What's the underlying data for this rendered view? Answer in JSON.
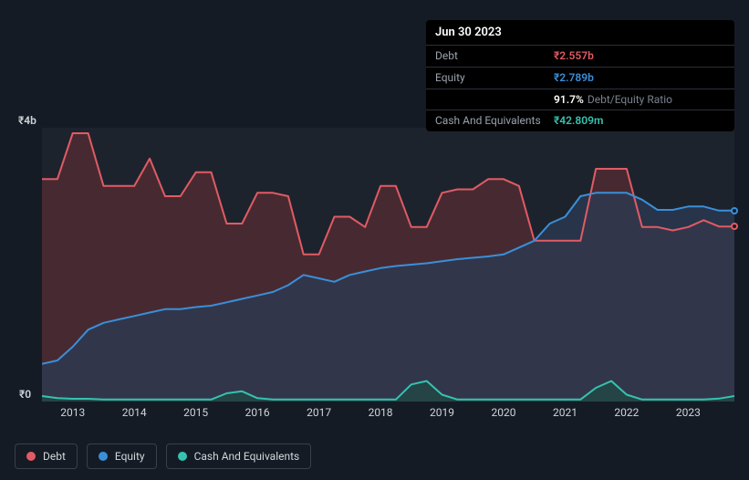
{
  "tooltip": {
    "date": "Jun 30 2023",
    "rows": [
      {
        "label": "Debt",
        "value": "₹2.557b",
        "cls": "debt"
      },
      {
        "label": "Equity",
        "value": "₹2.789b",
        "cls": "equity"
      },
      {
        "label": "",
        "value": "91.7%",
        "suffix": "Debt/Equity Ratio",
        "cls": "ratio"
      },
      {
        "label": "Cash And Equivalents",
        "value": "₹42.809m",
        "cls": "cash"
      }
    ]
  },
  "chart": {
    "background": "#1d232d",
    "page_bg": "#151b24",
    "y_axis": {
      "min": 0,
      "max": 4,
      "labels": [
        {
          "v": 4,
          "text": "₹4b"
        },
        {
          "v": 0,
          "text": "₹0"
        }
      ]
    },
    "x_axis": {
      "min": 2012.5,
      "max": 2023.75,
      "ticks": [
        2013,
        2014,
        2015,
        2016,
        2017,
        2018,
        2019,
        2020,
        2021,
        2022,
        2023
      ]
    },
    "series": {
      "debt": {
        "color": "#e15b64",
        "fill": "#5b2d34",
        "fill_opacity": 0.68,
        "line_width": 2,
        "data": [
          [
            2012.5,
            3.25
          ],
          [
            2012.75,
            3.25
          ],
          [
            2013.0,
            3.92
          ],
          [
            2013.25,
            3.92
          ],
          [
            2013.5,
            3.15
          ],
          [
            2013.75,
            3.15
          ],
          [
            2014.0,
            3.15
          ],
          [
            2014.25,
            3.55
          ],
          [
            2014.5,
            3.0
          ],
          [
            2014.75,
            3.0
          ],
          [
            2015.0,
            3.35
          ],
          [
            2015.25,
            3.35
          ],
          [
            2015.5,
            2.6
          ],
          [
            2015.75,
            2.6
          ],
          [
            2016.0,
            3.05
          ],
          [
            2016.25,
            3.05
          ],
          [
            2016.5,
            3.0
          ],
          [
            2016.75,
            2.15
          ],
          [
            2017.0,
            2.15
          ],
          [
            2017.25,
            2.7
          ],
          [
            2017.5,
            2.7
          ],
          [
            2017.75,
            2.55
          ],
          [
            2018.0,
            3.15
          ],
          [
            2018.25,
            3.15
          ],
          [
            2018.5,
            2.55
          ],
          [
            2018.75,
            2.55
          ],
          [
            2019.0,
            3.05
          ],
          [
            2019.25,
            3.1
          ],
          [
            2019.5,
            3.1
          ],
          [
            2019.75,
            3.25
          ],
          [
            2020.0,
            3.25
          ],
          [
            2020.25,
            3.15
          ],
          [
            2020.5,
            2.35
          ],
          [
            2020.75,
            2.35
          ],
          [
            2021.0,
            2.35
          ],
          [
            2021.25,
            2.35
          ],
          [
            2021.5,
            3.4
          ],
          [
            2021.75,
            3.4
          ],
          [
            2022.0,
            3.4
          ],
          [
            2022.25,
            2.55
          ],
          [
            2022.5,
            2.55
          ],
          [
            2022.75,
            2.5
          ],
          [
            2023.0,
            2.55
          ],
          [
            2023.25,
            2.65
          ],
          [
            2023.5,
            2.557
          ],
          [
            2023.75,
            2.557
          ]
        ]
      },
      "equity": {
        "color": "#3a8fd9",
        "fill": "#2b3b56",
        "fill_opacity": 0.72,
        "line_width": 2,
        "data": [
          [
            2012.5,
            0.55
          ],
          [
            2012.75,
            0.6
          ],
          [
            2013.0,
            0.8
          ],
          [
            2013.25,
            1.05
          ],
          [
            2013.5,
            1.15
          ],
          [
            2013.75,
            1.2
          ],
          [
            2014.0,
            1.25
          ],
          [
            2014.25,
            1.3
          ],
          [
            2014.5,
            1.35
          ],
          [
            2014.75,
            1.35
          ],
          [
            2015.0,
            1.38
          ],
          [
            2015.25,
            1.4
          ],
          [
            2015.5,
            1.45
          ],
          [
            2015.75,
            1.5
          ],
          [
            2016.0,
            1.55
          ],
          [
            2016.25,
            1.6
          ],
          [
            2016.5,
            1.7
          ],
          [
            2016.75,
            1.85
          ],
          [
            2017.0,
            1.8
          ],
          [
            2017.25,
            1.75
          ],
          [
            2017.5,
            1.85
          ],
          [
            2017.75,
            1.9
          ],
          [
            2018.0,
            1.95
          ],
          [
            2018.25,
            1.98
          ],
          [
            2018.5,
            2.0
          ],
          [
            2018.75,
            2.02
          ],
          [
            2019.0,
            2.05
          ],
          [
            2019.25,
            2.08
          ],
          [
            2019.5,
            2.1
          ],
          [
            2019.75,
            2.12
          ],
          [
            2020.0,
            2.15
          ],
          [
            2020.25,
            2.25
          ],
          [
            2020.5,
            2.35
          ],
          [
            2020.75,
            2.6
          ],
          [
            2021.0,
            2.7
          ],
          [
            2021.25,
            3.0
          ],
          [
            2021.5,
            3.05
          ],
          [
            2021.75,
            3.05
          ],
          [
            2022.0,
            3.05
          ],
          [
            2022.25,
            2.95
          ],
          [
            2022.5,
            2.8
          ],
          [
            2022.75,
            2.8
          ],
          [
            2023.0,
            2.85
          ],
          [
            2023.25,
            2.85
          ],
          [
            2023.5,
            2.789
          ],
          [
            2023.75,
            2.789
          ]
        ]
      },
      "cash": {
        "color": "#35c3b0",
        "fill": "#1f4a45",
        "fill_opacity": 0.7,
        "line_width": 2,
        "data": [
          [
            2012.5,
            0.08
          ],
          [
            2012.75,
            0.05
          ],
          [
            2013.0,
            0.04
          ],
          [
            2013.25,
            0.04
          ],
          [
            2013.5,
            0.03
          ],
          [
            2013.75,
            0.03
          ],
          [
            2014.0,
            0.03
          ],
          [
            2014.25,
            0.03
          ],
          [
            2014.5,
            0.03
          ],
          [
            2014.75,
            0.03
          ],
          [
            2015.0,
            0.03
          ],
          [
            2015.25,
            0.03
          ],
          [
            2015.5,
            0.12
          ],
          [
            2015.75,
            0.15
          ],
          [
            2016.0,
            0.05
          ],
          [
            2016.25,
            0.03
          ],
          [
            2016.5,
            0.03
          ],
          [
            2016.75,
            0.03
          ],
          [
            2017.0,
            0.03
          ],
          [
            2017.25,
            0.03
          ],
          [
            2017.5,
            0.03
          ],
          [
            2017.75,
            0.03
          ],
          [
            2018.0,
            0.03
          ],
          [
            2018.25,
            0.03
          ],
          [
            2018.5,
            0.25
          ],
          [
            2018.75,
            0.3
          ],
          [
            2019.0,
            0.1
          ],
          [
            2019.25,
            0.03
          ],
          [
            2019.5,
            0.03
          ],
          [
            2019.75,
            0.03
          ],
          [
            2020.0,
            0.03
          ],
          [
            2020.25,
            0.03
          ],
          [
            2020.5,
            0.03
          ],
          [
            2020.75,
            0.03
          ],
          [
            2021.0,
            0.03
          ],
          [
            2021.25,
            0.03
          ],
          [
            2021.5,
            0.2
          ],
          [
            2021.75,
            0.3
          ],
          [
            2022.0,
            0.1
          ],
          [
            2022.25,
            0.03
          ],
          [
            2022.5,
            0.03
          ],
          [
            2022.75,
            0.03
          ],
          [
            2023.0,
            0.03
          ],
          [
            2023.25,
            0.03
          ],
          [
            2023.5,
            0.043
          ],
          [
            2023.75,
            0.08
          ]
        ]
      }
    },
    "end_markers": [
      {
        "series": "equity",
        "border": "#3a8fd9",
        "fill": "#151b24"
      },
      {
        "series": "debt",
        "border": "#e15b64",
        "fill": "#151b24"
      }
    ]
  },
  "legend": [
    {
      "label": "Debt",
      "color": "#e15b64"
    },
    {
      "label": "Equity",
      "color": "#3a8fd9"
    },
    {
      "label": "Cash And Equivalents",
      "color": "#35c3b0"
    }
  ]
}
